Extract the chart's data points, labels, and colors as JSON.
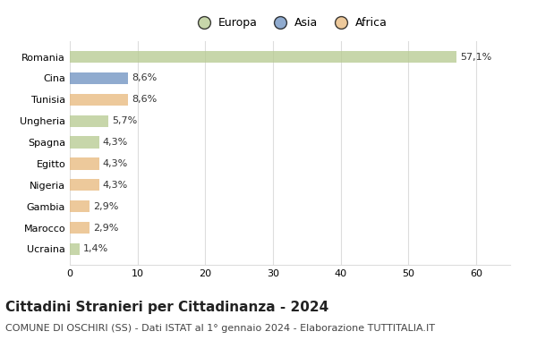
{
  "categories": [
    "Romania",
    "Cina",
    "Tunisia",
    "Ungheria",
    "Spagna",
    "Egitto",
    "Nigeria",
    "Gambia",
    "Marocco",
    "Ucraina"
  ],
  "values": [
    57.1,
    8.6,
    8.6,
    5.7,
    4.3,
    4.3,
    4.3,
    2.9,
    2.9,
    1.4
  ],
  "labels": [
    "57,1%",
    "8,6%",
    "8,6%",
    "5,7%",
    "4,3%",
    "4,3%",
    "4,3%",
    "2,9%",
    "2,9%",
    "1,4%"
  ],
  "colors": [
    "#b5c98e",
    "#6b8fbf",
    "#e8b87a",
    "#b5c98e",
    "#b5c98e",
    "#e8b87a",
    "#e8b87a",
    "#e8b87a",
    "#e8b87a",
    "#b5c98e"
  ],
  "legend_labels": [
    "Europa",
    "Asia",
    "Africa"
  ],
  "legend_colors": [
    "#b5c98e",
    "#6b8fbf",
    "#e8b87a"
  ],
  "title": "Cittadini Stranieri per Cittadinanza - 2024",
  "subtitle": "COMUNE DI OSCHIRI (SS) - Dati ISTAT al 1° gennaio 2024 - Elaborazione TUTTITALIA.IT",
  "xlim": [
    0,
    65
  ],
  "xticks": [
    0,
    10,
    20,
    30,
    40,
    50,
    60
  ],
  "bg_color": "#ffffff",
  "grid_color": "#dddddd",
  "title_fontsize": 11,
  "subtitle_fontsize": 8,
  "label_fontsize": 8,
  "tick_fontsize": 8,
  "bar_alpha": 0.75
}
